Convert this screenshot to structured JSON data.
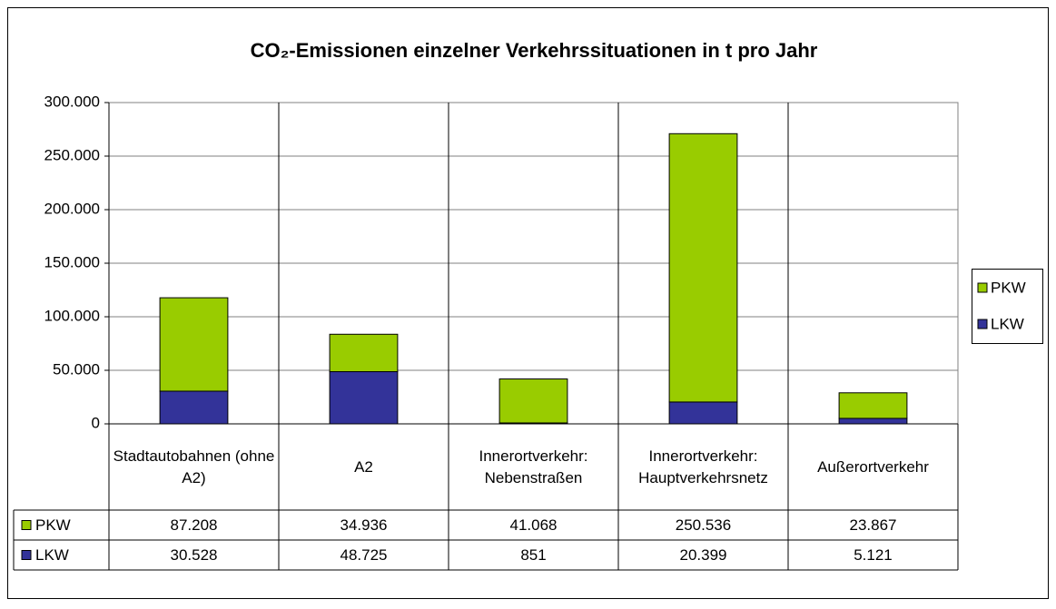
{
  "chart_data": {
    "type": "stacked-bar",
    "title": "CO₂-Emissionen einzelner Verkehrssituationen in t pro Jahr",
    "categories": [
      "Stadtautobahnen (ohne A2)",
      "A2",
      "Innerortverkehr: Nebenstraßen",
      "Innerortverkehr: Hauptverkehrsnetz",
      "Außerortverkehr"
    ],
    "series": [
      {
        "name": "PKW",
        "color": "#99cc00",
        "values": [
          87208,
          34936,
          41068,
          250536,
          23867
        ],
        "value_labels": [
          "87.208",
          "34.936",
          "41.068",
          "250.536",
          "23.867"
        ]
      },
      {
        "name": "LKW",
        "color": "#333399",
        "values": [
          30528,
          48725,
          851,
          20399,
          5121
        ],
        "value_labels": [
          "30.528",
          "48.725",
          "851",
          "20.399",
          "5.121"
        ]
      }
    ],
    "ylim": [
      0,
      300000
    ],
    "yticks": [
      0,
      {
        "value": 50000,
        "label": "50.000"
      },
      {
        "value": 100000,
        "label": "100.000"
      },
      {
        "value": 150000,
        "label": "150.000"
      },
      {
        "value": 200000,
        "label": "200.000"
      },
      {
        "value": 250000,
        "label": "250.000"
      },
      {
        "value": 300000,
        "label": "300.000"
      }
    ],
    "grid": true,
    "legend": "right"
  }
}
